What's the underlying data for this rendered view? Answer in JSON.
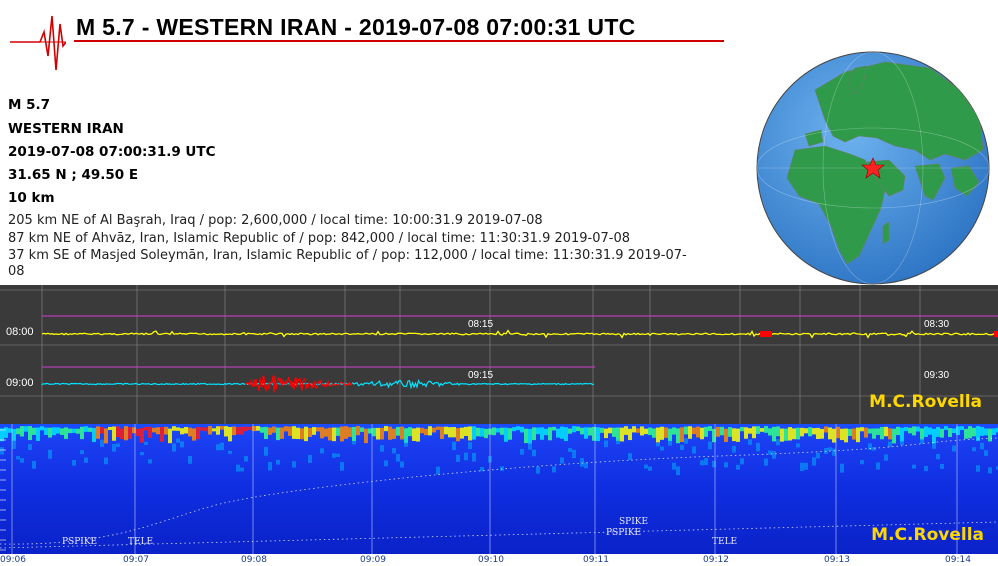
{
  "header": {
    "title": "M 5.7 - WESTERN IRAN - 2019-07-08 07:00:31 UTC"
  },
  "event": {
    "magnitude": "M 5.7",
    "region": "WESTERN IRAN",
    "datetime": "2019-07-08 07:00:31.9 UTC",
    "coordinates": "31.65 N ; 49.50 E",
    "depth": "10 km"
  },
  "nearby": [
    "205 km NE of Al Başrah, Iraq / pop: 2,600,000 / local time: 10:00:31.9 2019-07-08",
    "87 km NE of Ahvāz, Iran, Islamic Republic of / pop: 842,000 / local time: 11:30:31.9 2019-07-08",
    "37 km SE of Masjed Soleymān, Iran, Islamic Republic of / pop: 112,000 / local time: 11:30:31.9 2019-07-",
    "08"
  ],
  "seismogram": {
    "rows": [
      {
        "label": "08:00",
        "marks": [
          "08:15",
          "08:30"
        ],
        "color": "#ffff00"
      },
      {
        "label": "09:00",
        "marks": [
          "09:15",
          "09:30"
        ],
        "color": "#00e5ff"
      }
    ],
    "event_color": "#ff0000",
    "credit": "M.C.Rovella"
  },
  "spectrogram": {
    "time_labels": [
      "09:06",
      "09:07",
      "09:08",
      "09:09",
      "09:10",
      "09:11",
      "09:12",
      "09:13",
      "09:14"
    ],
    "annotations": [
      "PSPIKE",
      "TELE",
      "SPIKE",
      "PSPIKE",
      "TELE"
    ],
    "credit": "M.C.Rovella"
  },
  "colors": {
    "title_rule": "#d00000",
    "ocean": "#3a86d4",
    "land": "#2e9a4a",
    "epicenter": "#ff2222",
    "credit": "#ffd700"
  },
  "icons": {
    "logo": "seismograph-wave-icon",
    "epicenter": "star-icon"
  }
}
